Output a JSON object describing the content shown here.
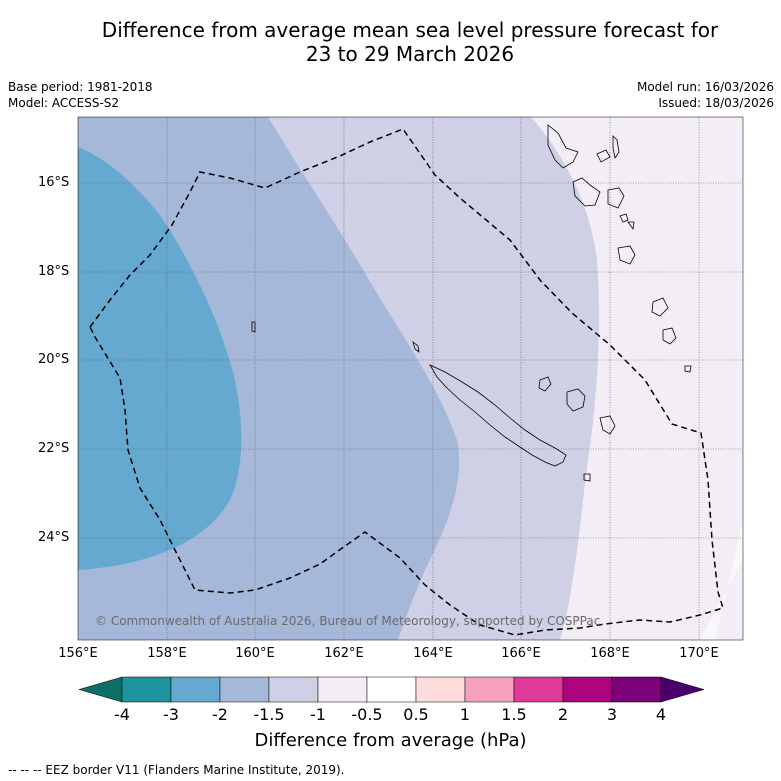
{
  "title_line1": "Difference from average mean sea level pressure forecast for",
  "title_line2": "23 to 29 March 2026",
  "base_period": "Base period: 1981-2018",
  "model": "Model: ACCESS-S2",
  "model_run": "Model run: 16/03/2026",
  "issued": "Issued: 18/03/2026",
  "lat_labels": [
    "16°S",
    "18°S",
    "20°S",
    "22°S",
    "24°S"
  ],
  "lon_labels": [
    "156°E",
    "158°E",
    "160°E",
    "162°E",
    "164°E",
    "166°E",
    "168°E",
    "170°E"
  ],
  "copyright": "© Commonwealth of Australia 2026, Bureau of Meteorology, supported by COSPPac",
  "colorbar": {
    "label": "Difference from average (hPa)",
    "ticks": [
      "-4",
      "-3",
      "-2",
      "-1.5",
      "-1",
      "-0.5",
      "0.5",
      "1",
      "1.5",
      "2",
      "3",
      "4"
    ],
    "colors": [
      "#0d6e66",
      "#1b949e",
      "#66a9d0",
      "#a6b8d9",
      "#cfd0e5",
      "#f3eef6",
      "#ffffff",
      "#fddcdc",
      "#f8a1bd",
      "#de3a9a",
      "#ac047f",
      "#7c017a",
      "#49006a"
    ]
  },
  "footnote": "--  --  -- EEZ border V11 (Flanders Marine Institute, 2019)."
}
